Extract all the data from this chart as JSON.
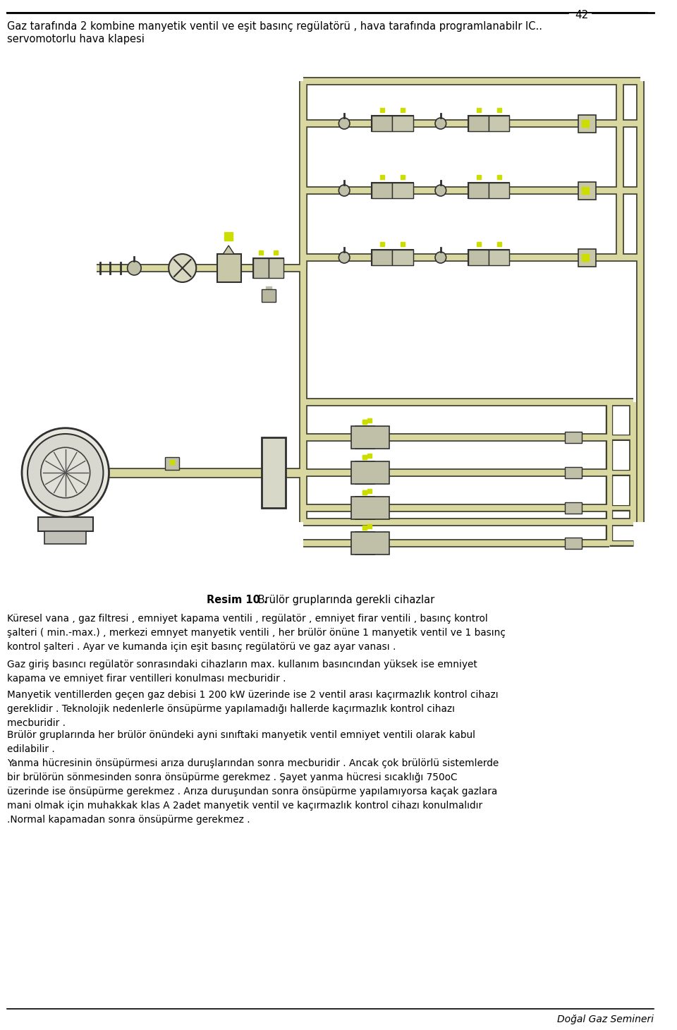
{
  "page_number": "42",
  "bg_color": "#ffffff",
  "text_color": "#000000",
  "font_size_body": 9.8,
  "font_size_header": 10.5,
  "font_size_caption": 10.5,
  "font_size_footer": 10.0,
  "font_size_page": 11,
  "pipe_yellow": "#d8d8a0",
  "pipe_edge": "#404030",
  "pipe_lw": 5,
  "component_fill": "#c8c8a0",
  "component_edge": "#303030",
  "bg_diagram": "#ffffff",
  "yellow_indicator": "#ccdd00",
  "header_line1": "Gaz tarafında 2 kombine manyetik ventil ve eşit basınç regülatörü , hava tarafında programlanabilr IC..",
  "header_line2": "servomotorlu hava klapesi",
  "caption_bold": "Resim 10 .",
  "caption_normal": " Brülör gruplarında gerekli cihazlar",
  "para1": "Küresel vana , gaz filtresi , emniyet kapama ventili , regülatör , emniyet firar ventili , basınç kontrol\nşalteri ( min.-max.) , merkezi emnyet manyetik ventili , her brülör önüne 1 manyetik ventil ve 1 basınç\nkontrol şalteri . Ayar ve kumanda için eşit basınç regülatörü ve gaz ayar vanası .",
  "para2": "Gaz giriş basıncı regülatör sonrasındaki cihazların max. kullanım basıncından yüksek ise emniyet\nkapama ve emniyet firar ventilleri konulması mecburidir .",
  "para3": "Manyetik ventillerden geçen gaz debisi 1 200 kW üzerinde ise 2 ventil arası kaçırmazlık kontrol cihazı\ngereklidir . Teknolojik nedenlerle önsüpürme yapılamadığı hallerde kaçırmazlık kontrol cihazı\nmecburidir .",
  "para4": "Brülör gruplarında her brülör önündeki ayni sınıftaki manyetik ventil emniyet ventili olarak kabul\nedilabilir .",
  "para5": "Yanma hücresinin önsüpürmesi arıza duruşlarından sonra mecburidir . Ancak çok brülörlü sistemlerde\nbir brülörün sönmesinden sonra önsüpürme gerekmez . Şayet yanma hücresi sıcaklığı 750oC\nüzerinde ise önsüpürme gerekmez . Arıza duruşundan sonra önsüpürme yapılamıyorsa kaçak gazlara\nmani olmak için muhakkak klas A 2adet manyetik ventil ve kaçırmazlık kontrol cihazı konulmalıdır\n.Normal kapamadan sonra önsüpürme gerekmez .",
  "footer_text": "Doğal Gaz Semineri"
}
